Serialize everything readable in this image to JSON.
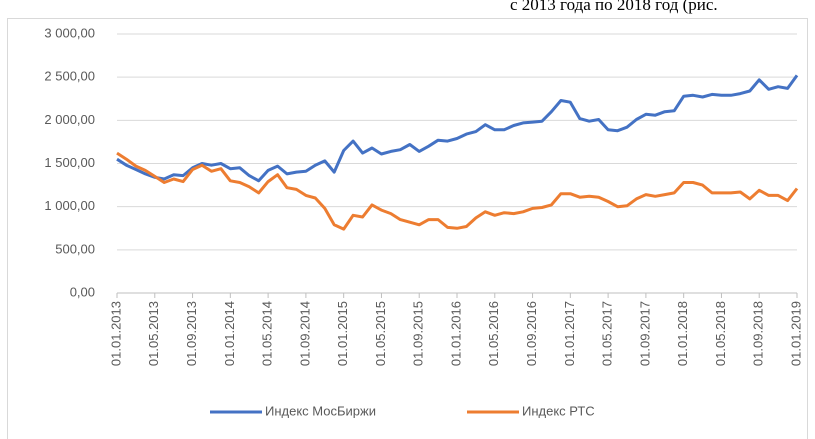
{
  "chart_data": {
    "type": "line",
    "annotation": "с 2013 года по 2018 год (рис.",
    "categories": [
      "01.01.2013",
      null,
      null,
      null,
      "01.05.2013",
      null,
      null,
      null,
      "01.09.2013",
      null,
      null,
      null,
      "01.01.2014",
      null,
      null,
      null,
      "01.05.2014",
      null,
      null,
      null,
      "01.09.2014",
      null,
      null,
      null,
      "01.01.2015",
      null,
      null,
      null,
      "01.05.2015",
      null,
      null,
      null,
      "01.09.2015",
      null,
      null,
      null,
      "01.01.2016",
      null,
      null,
      null,
      "01.05.2016",
      null,
      null,
      null,
      "01.09.2016",
      null,
      null,
      null,
      "01.01.2017",
      null,
      null,
      null,
      "01.05.2017",
      null,
      null,
      null,
      "01.09.2017",
      null,
      null,
      null,
      "01.01.2018",
      null,
      null,
      null,
      "01.05.2018",
      null,
      null,
      null,
      "01.09.2018",
      null,
      null,
      null,
      "01.01.2019"
    ],
    "series": [
      {
        "name": "Индекс МосБиржи",
        "color": "#4472c4",
        "values": [
          1550,
          1480,
          1430,
          1380,
          1340,
          1320,
          1370,
          1360,
          1450,
          1500,
          1480,
          1500,
          1440,
          1450,
          1360,
          1300,
          1420,
          1470,
          1380,
          1400,
          1410,
          1480,
          1530,
          1400,
          1650,
          1760,
          1620,
          1680,
          1610,
          1640,
          1660,
          1720,
          1640,
          1700,
          1770,
          1760,
          1790,
          1840,
          1870,
          1950,
          1890,
          1890,
          1940,
          1970,
          1980,
          1990,
          2100,
          2230,
          2210,
          2020,
          1990,
          2010,
          1890,
          1880,
          1920,
          2010,
          2070,
          2060,
          2100,
          2110,
          2280,
          2290,
          2270,
          2300,
          2290,
          2290,
          2310,
          2340,
          2470,
          2360,
          2390,
          2370,
          2520
        ]
      },
      {
        "name": "Индекс РТС",
        "color": "#ed7d31",
        "values": [
          1620,
          1550,
          1470,
          1420,
          1350,
          1280,
          1320,
          1290,
          1430,
          1480,
          1410,
          1440,
          1300,
          1280,
          1230,
          1160,
          1290,
          1370,
          1220,
          1200,
          1130,
          1100,
          980,
          790,
          740,
          900,
          880,
          1020,
          960,
          920,
          850,
          820,
          790,
          850,
          850,
          760,
          750,
          770,
          870,
          940,
          900,
          930,
          920,
          940,
          980,
          990,
          1020,
          1150,
          1150,
          1110,
          1120,
          1110,
          1060,
          1000,
          1010,
          1090,
          1140,
          1120,
          1140,
          1160,
          1280,
          1280,
          1250,
          1160,
          1160,
          1160,
          1170,
          1090,
          1190,
          1130,
          1130,
          1070,
          1210
        ]
      }
    ],
    "ylim": [
      0,
      3000
    ],
    "yticks": [
      {
        "value": 0,
        "label": "0,00"
      },
      {
        "value": 500,
        "label": "500,00"
      },
      {
        "value": 1000,
        "label": "1 000,00"
      },
      {
        "value": 1500,
        "label": "1 500,00"
      },
      {
        "value": 2000,
        "label": "2 000,00"
      },
      {
        "value": 2500,
        "label": "2 500,00"
      },
      {
        "value": 3000,
        "label": "3 000,00"
      }
    ],
    "grid": true,
    "legend": "bottom"
  }
}
